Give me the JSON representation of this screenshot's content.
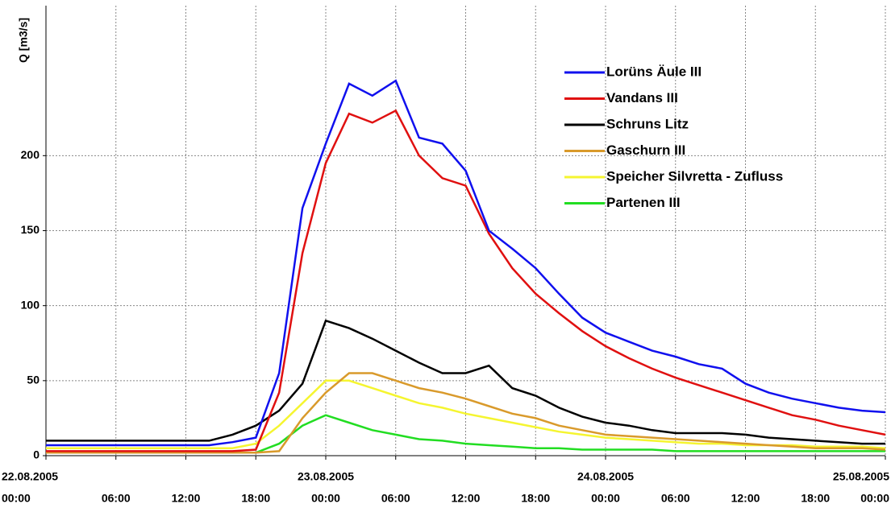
{
  "chart_data": {
    "type": "line",
    "ylabel": "Q [m3/s]",
    "x": [
      "2005-08-22T00:00",
      "2005-08-22T02:00",
      "2005-08-22T04:00",
      "2005-08-22T06:00",
      "2005-08-22T08:00",
      "2005-08-22T10:00",
      "2005-08-22T12:00",
      "2005-08-22T14:00",
      "2005-08-22T16:00",
      "2005-08-22T18:00",
      "2005-08-22T20:00",
      "2005-08-22T22:00",
      "2005-08-23T00:00",
      "2005-08-23T02:00",
      "2005-08-23T04:00",
      "2005-08-23T06:00",
      "2005-08-23T08:00",
      "2005-08-23T10:00",
      "2005-08-23T12:00",
      "2005-08-23T14:00",
      "2005-08-23T16:00",
      "2005-08-23T18:00",
      "2005-08-23T20:00",
      "2005-08-23T22:00",
      "2005-08-24T00:00",
      "2005-08-24T02:00",
      "2005-08-24T04:00",
      "2005-08-24T06:00",
      "2005-08-24T08:00",
      "2005-08-24T10:00",
      "2005-08-24T12:00",
      "2005-08-24T14:00",
      "2005-08-24T16:00",
      "2005-08-24T18:00",
      "2005-08-24T20:00",
      "2005-08-24T22:00",
      "2005-08-25T00:00"
    ],
    "series": [
      {
        "name": "Lorüns Äule III",
        "color": "#1010ee",
        "values": [
          7,
          7,
          7,
          7,
          7,
          7,
          7,
          7,
          9,
          12,
          55,
          165,
          208,
          248,
          240,
          250,
          212,
          208,
          190,
          150,
          138,
          125,
          108,
          92,
          82,
          76,
          70,
          66,
          61,
          58,
          48,
          42,
          38,
          35,
          32,
          30,
          29
        ]
      },
      {
        "name": "Vandans III",
        "color": "#e01010",
        "values": [
          3,
          3,
          3,
          3,
          3,
          3,
          3,
          3,
          3,
          4,
          42,
          135,
          195,
          228,
          222,
          230,
          200,
          185,
          180,
          148,
          125,
          108,
          95,
          83,
          73,
          65,
          58,
          52,
          47,
          42,
          37,
          32,
          27,
          24,
          20,
          17,
          14
        ]
      },
      {
        "name": "Schruns Litz",
        "color": "#000000",
        "values": [
          10,
          10,
          10,
          10,
          10,
          10,
          10,
          10,
          14,
          20,
          30,
          48,
          90,
          85,
          78,
          70,
          62,
          55,
          55,
          60,
          45,
          40,
          32,
          26,
          22,
          20,
          17,
          15,
          15,
          15,
          14,
          12,
          11,
          10,
          9,
          8,
          8
        ]
      },
      {
        "name": "Gaschurn III",
        "color": "#d99a2b",
        "values": [
          2,
          2,
          2,
          2,
          2,
          2,
          2,
          2,
          2,
          2,
          3,
          25,
          42,
          55,
          55,
          50,
          45,
          42,
          38,
          33,
          28,
          25,
          20,
          17,
          14,
          13,
          12,
          11,
          10,
          9,
          8,
          7,
          6,
          5,
          5,
          5,
          4
        ]
      },
      {
        "name": "Speicher Silvretta - Zufluss",
        "color": "#f5f530",
        "values": [
          5,
          5,
          5,
          5,
          5,
          5,
          5,
          5,
          5,
          8,
          20,
          35,
          50,
          50,
          45,
          40,
          35,
          32,
          28,
          25,
          22,
          19,
          16,
          14,
          12,
          11,
          10,
          9,
          8,
          8,
          7,
          7,
          7,
          6,
          6,
          6,
          5
        ]
      },
      {
        "name": "Partenen III",
        "color": "#22dd22",
        "values": [
          2,
          2,
          2,
          2,
          2,
          2,
          2,
          2,
          2,
          2,
          8,
          20,
          27,
          22,
          17,
          14,
          11,
          10,
          8,
          7,
          6,
          5,
          5,
          4,
          4,
          4,
          4,
          3,
          3,
          3,
          3,
          3,
          3,
          3,
          3,
          3,
          3
        ]
      }
    ],
    "xlim": [
      "2005-08-22T00:00",
      "2005-08-25T00:00"
    ],
    "xticks": [
      {
        "value": "2005-08-22T00:00",
        "label": [
          "22.08.2005",
          "00:00"
        ]
      },
      {
        "value": "2005-08-22T06:00",
        "label": [
          "06:00"
        ]
      },
      {
        "value": "2005-08-22T12:00",
        "label": [
          "12:00"
        ]
      },
      {
        "value": "2005-08-22T18:00",
        "label": [
          "18:00"
        ]
      },
      {
        "value": "2005-08-23T00:00",
        "label": [
          "23.08.2005",
          "00:00"
        ]
      },
      {
        "value": "2005-08-23T06:00",
        "label": [
          "06:00"
        ]
      },
      {
        "value": "2005-08-23T12:00",
        "label": [
          "12:00"
        ]
      },
      {
        "value": "2005-08-23T18:00",
        "label": [
          "18:00"
        ]
      },
      {
        "value": "2005-08-24T00:00",
        "label": [
          "24.08.2005",
          "00:00"
        ]
      },
      {
        "value": "2005-08-24T06:00",
        "label": [
          "06:00"
        ]
      },
      {
        "value": "2005-08-24T12:00",
        "label": [
          "12:00"
        ]
      },
      {
        "value": "2005-08-24T18:00",
        "label": [
          "18:00"
        ]
      },
      {
        "value": "2005-08-25T00:00",
        "label": [
          "25.08.2005",
          "00:00"
        ]
      }
    ],
    "ylim": [
      0,
      300
    ],
    "yticks": [
      0,
      50,
      100,
      150,
      200
    ],
    "grid": true,
    "legend": "upper right"
  }
}
